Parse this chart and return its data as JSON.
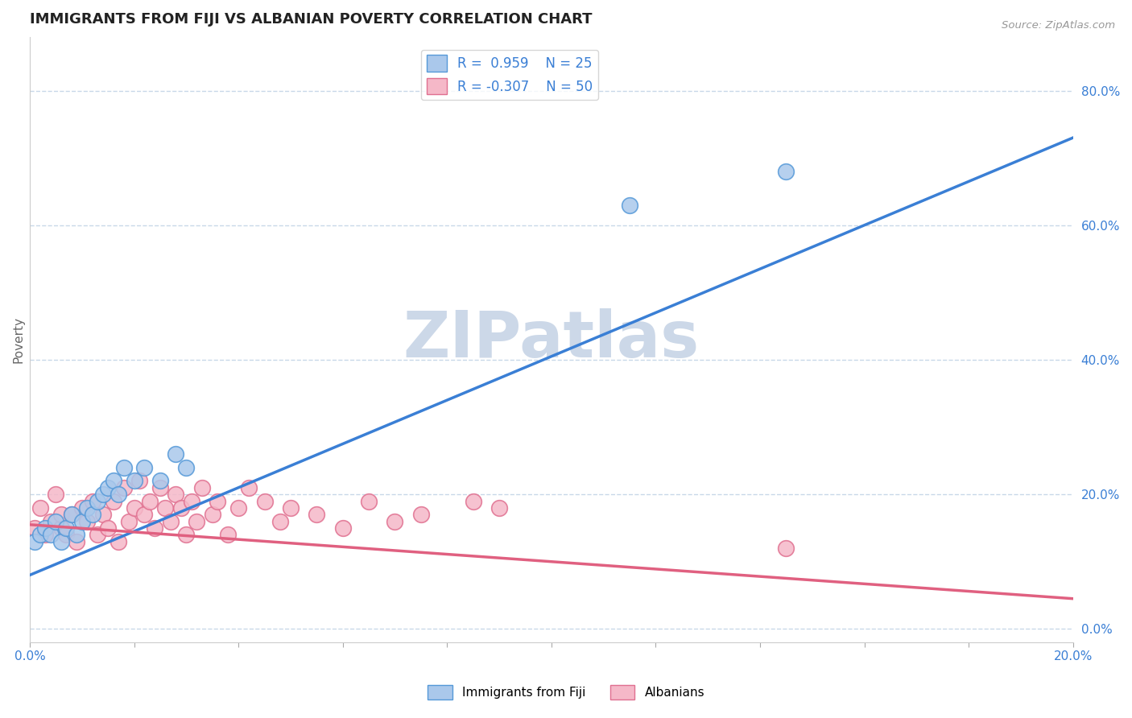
{
  "title": "IMMIGRANTS FROM FIJI VS ALBANIAN POVERTY CORRELATION CHART",
  "source_text": "Source: ZipAtlas.com",
  "ylabel": "Poverty",
  "ylabel_right_ticks": [
    "0.0%",
    "20.0%",
    "40.0%",
    "60.0%",
    "80.0%"
  ],
  "ylabel_right_vals": [
    0.0,
    0.2,
    0.4,
    0.6,
    0.8
  ],
  "xmin": 0.0,
  "xmax": 0.2,
  "ymin": -0.02,
  "ymax": 0.88,
  "fiji_color": "#aac8eb",
  "fiji_edge_color": "#5599d8",
  "albanian_color": "#f5b8c8",
  "albanian_edge_color": "#e07090",
  "fiji_R": 0.959,
  "fiji_N": 25,
  "albanian_R": -0.307,
  "albanian_N": 50,
  "fiji_trend_color": "#3a7fd5",
  "albanian_trend_color": "#e06080",
  "fiji_trend_x0": 0.0,
  "fiji_trend_y0": 0.08,
  "fiji_trend_x1": 0.2,
  "fiji_trend_y1": 0.73,
  "alb_trend_x0": 0.0,
  "alb_trend_y0": 0.155,
  "alb_trend_x1": 0.2,
  "alb_trend_y1": 0.045,
  "watermark": "ZIPatlas",
  "watermark_color": "#ccd8e8",
  "fiji_scatter_x": [
    0.001,
    0.002,
    0.003,
    0.004,
    0.005,
    0.006,
    0.007,
    0.008,
    0.009,
    0.01,
    0.011,
    0.012,
    0.013,
    0.014,
    0.015,
    0.016,
    0.017,
    0.018,
    0.02,
    0.022,
    0.025,
    0.028,
    0.03,
    0.115,
    0.145
  ],
  "fiji_scatter_y": [
    0.13,
    0.14,
    0.15,
    0.14,
    0.16,
    0.13,
    0.15,
    0.17,
    0.14,
    0.16,
    0.18,
    0.17,
    0.19,
    0.2,
    0.21,
    0.22,
    0.2,
    0.24,
    0.22,
    0.24,
    0.22,
    0.26,
    0.24,
    0.63,
    0.68
  ],
  "albanian_scatter_x": [
    0.001,
    0.002,
    0.003,
    0.004,
    0.005,
    0.006,
    0.006,
    0.007,
    0.008,
    0.009,
    0.01,
    0.011,
    0.012,
    0.013,
    0.014,
    0.015,
    0.016,
    0.017,
    0.018,
    0.019,
    0.02,
    0.021,
    0.022,
    0.023,
    0.024,
    0.025,
    0.026,
    0.027,
    0.028,
    0.029,
    0.03,
    0.031,
    0.032,
    0.033,
    0.035,
    0.036,
    0.038,
    0.04,
    0.042,
    0.045,
    0.048,
    0.05,
    0.055,
    0.06,
    0.065,
    0.07,
    0.075,
    0.085,
    0.09,
    0.145
  ],
  "albanian_scatter_y": [
    0.15,
    0.18,
    0.14,
    0.16,
    0.2,
    0.15,
    0.17,
    0.14,
    0.17,
    0.13,
    0.18,
    0.16,
    0.19,
    0.14,
    0.17,
    0.15,
    0.19,
    0.13,
    0.21,
    0.16,
    0.18,
    0.22,
    0.17,
    0.19,
    0.15,
    0.21,
    0.18,
    0.16,
    0.2,
    0.18,
    0.14,
    0.19,
    0.16,
    0.21,
    0.17,
    0.19,
    0.14,
    0.18,
    0.21,
    0.19,
    0.16,
    0.18,
    0.17,
    0.15,
    0.19,
    0.16,
    0.17,
    0.19,
    0.18,
    0.12
  ],
  "grid_color": "#c8d8e8",
  "background_color": "#ffffff",
  "title_fontsize": 13,
  "axis_color": "#3a7fd5",
  "legend_fontsize": 12
}
